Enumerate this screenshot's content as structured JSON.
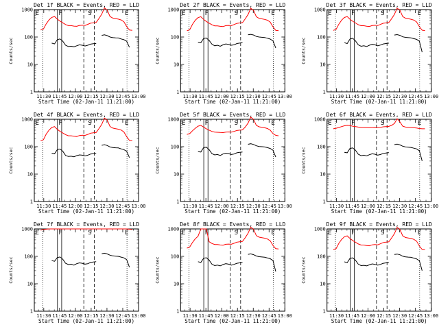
{
  "chart_data": [
    {
      "type": "line",
      "title": "Det 1f BLACK = Events, RED = LLD",
      "series": [
        {
          "name": "Events",
          "color": "#000000",
          "values": [
            null,
            null,
            null,
            null,
            60,
            56,
            80,
            85,
            70,
            50,
            45,
            46,
            44,
            48,
            52,
            50,
            47,
            50,
            55,
            57,
            58,
            null,
            115,
            120,
            112,
            100,
            95,
            93,
            92,
            85,
            80,
            70,
            42,
            null
          ]
        },
        {
          "name": "LLD",
          "color": "#ff0000",
          "values": [
            180,
            195,
            300,
            420,
            520,
            560,
            450,
            380,
            330,
            285,
            260,
            260,
            250,
            245,
            265,
            270,
            265,
            290,
            320,
            330,
            340,
            470,
            680,
            1150,
            950,
            560,
            490,
            470,
            450,
            420,
            360,
            240,
            180,
            175
          ]
        }
      ]
    },
    {
      "type": "line",
      "title": "Det 2f BLACK = Events, RED = LLD",
      "series": [
        {
          "name": "Events",
          "color": "#000000",
          "values": [
            null,
            null,
            null,
            null,
            65,
            62,
            88,
            92,
            75,
            55,
            48,
            50,
            46,
            52,
            56,
            54,
            50,
            52,
            58,
            60,
            62,
            null,
            120,
            125,
            118,
            105,
            100,
            98,
            96,
            90,
            84,
            72,
            40,
            null
          ]
        },
        {
          "name": "LLD",
          "color": "#ff0000",
          "values": [
            170,
            185,
            290,
            410,
            510,
            550,
            440,
            370,
            320,
            280,
            255,
            255,
            245,
            240,
            260,
            265,
            260,
            285,
            315,
            325,
            335,
            460,
            660,
            1120,
            930,
            550,
            480,
            460,
            440,
            410,
            350,
            235,
            175,
            170
          ]
        }
      ]
    },
    {
      "type": "line",
      "title": "Det 3f BLACK = Events, RED = LLD",
      "series": [
        {
          "name": "Events",
          "color": "#000000",
          "values": [
            null,
            null,
            null,
            null,
            62,
            58,
            84,
            90,
            72,
            52,
            46,
            48,
            45,
            50,
            54,
            52,
            48,
            51,
            56,
            58,
            60,
            null,
            118,
            122,
            115,
            102,
            97,
            95,
            93,
            87,
            82,
            70,
            28,
            null
          ]
        },
        {
          "name": "LLD",
          "color": "#ff0000",
          "values": [
            175,
            190,
            295,
            415,
            515,
            555,
            445,
            375,
            325,
            282,
            258,
            258,
            248,
            242,
            262,
            268,
            262,
            288,
            318,
            328,
            338,
            465,
            670,
            1130,
            940,
            555,
            485,
            465,
            445,
            415,
            355,
            238,
            178,
            172
          ]
        }
      ]
    },
    {
      "type": "line",
      "title": "Det 4f BLACK = Events, RED = LLD",
      "series": [
        {
          "name": "Events",
          "color": "#000000",
          "values": [
            null,
            null,
            null,
            null,
            58,
            55,
            78,
            82,
            68,
            48,
            44,
            45,
            43,
            47,
            50,
            49,
            46,
            49,
            54,
            56,
            57,
            null,
            112,
            118,
            110,
            98,
            93,
            91,
            90,
            83,
            78,
            68,
            40,
            null
          ]
        },
        {
          "name": "LLD",
          "color": "#ff0000",
          "values": [
            165,
            180,
            285,
            400,
            500,
            540,
            430,
            360,
            315,
            275,
            250,
            250,
            240,
            235,
            255,
            262,
            258,
            280,
            310,
            320,
            330,
            455,
            650,
            1100,
            920,
            545,
            475,
            455,
            435,
            405,
            345,
            230,
            170,
            165
          ]
        }
      ]
    },
    {
      "type": "line",
      "title": "Det 5f BLACK = Events, RED = LLD",
      "series": [
        {
          "name": "Events",
          "color": "#000000",
          "values": [
            null,
            null,
            null,
            null,
            66,
            64,
            92,
            96,
            78,
            56,
            50,
            52,
            48,
            54,
            58,
            56,
            52,
            54,
            60,
            62,
            64,
            null,
            122,
            128,
            120,
            108,
            102,
            100,
            98,
            92,
            86,
            74,
            42,
            null
          ]
        },
        {
          "name": "LLD",
          "color": "#ff0000",
          "values": [
            280,
            300,
            380,
            470,
            560,
            600,
            520,
            450,
            400,
            360,
            340,
            335,
            330,
            325,
            340,
            345,
            340,
            360,
            390,
            400,
            410,
            520,
            720,
            1200,
            980,
            600,
            530,
            510,
            490,
            460,
            400,
            300,
            260,
            250
          ]
        }
      ]
    },
    {
      "type": "line",
      "title": "Det 6f BLACK = Events, RED = LLD",
      "series": [
        {
          "name": "Events",
          "color": "#000000",
          "values": [
            null,
            null,
            null,
            null,
            62,
            60,
            86,
            90,
            74,
            53,
            47,
            49,
            46,
            51,
            55,
            53,
            49,
            52,
            57,
            59,
            61,
            null,
            119,
            124,
            116,
            104,
            98,
            96,
            94,
            88,
            83,
            71,
            30,
            null
          ]
        },
        {
          "name": "LLD",
          "color": "#ff0000",
          "values": [
            450,
            470,
            500,
            540,
            580,
            600,
            590,
            560,
            540,
            520,
            500,
            500,
            495,
            490,
            500,
            505,
            500,
            510,
            530,
            540,
            550,
            600,
            700,
            1050,
            800,
            560,
            520,
            510,
            500,
            490,
            480,
            460,
            450,
            450
          ]
        }
      ]
    },
    {
      "type": "line",
      "title": "Det 7f BLACK = Events, RED = LLD",
      "series": [
        {
          "name": "Events",
          "color": "#000000",
          "values": [
            null,
            null,
            null,
            null,
            70,
            66,
            90,
            95,
            78,
            56,
            50,
            52,
            48,
            54,
            58,
            56,
            52,
            54,
            60,
            62,
            64,
            null,
            124,
            130,
            122,
            110,
            104,
            102,
            100,
            94,
            88,
            76,
            40,
            null
          ]
        },
        {
          "name": "LLD",
          "color": "#ff0000",
          "values": [
            900,
            950,
            980,
            1000,
            1000,
            1000,
            1000,
            1000,
            1000,
            1000,
            1000,
            1000,
            1000,
            1000,
            1000,
            1000,
            1000,
            1000,
            1000,
            1000,
            1000,
            1000,
            1000,
            1000,
            1000,
            1000,
            1000,
            1000,
            1000,
            1000,
            1000,
            1000,
            980,
            950
          ]
        }
      ]
    },
    {
      "type": "line",
      "title": "Det 8f BLACK = Events, RED = LLD",
      "series": [
        {
          "name": "Events",
          "color": "#000000",
          "values": [
            null,
            null,
            null,
            null,
            64,
            60,
            85,
            89,
            73,
            52,
            46,
            48,
            45,
            50,
            54,
            52,
            48,
            51,
            56,
            58,
            60,
            null,
            118,
            123,
            115,
            103,
            97,
            95,
            93,
            87,
            82,
            70,
            28,
            null
          ]
        },
        {
          "name": "LLD",
          "color": "#ff0000",
          "values": [
            200,
            220,
            320,
            440,
            540,
            1000,
            1000,
            1000,
            340,
            295,
            270,
            270,
            260,
            255,
            275,
            280,
            275,
            300,
            330,
            340,
            350,
            480,
            690,
            1160,
            960,
            570,
            500,
            480,
            460,
            430,
            370,
            250,
            190,
            185
          ]
        }
      ]
    },
    {
      "type": "line",
      "title": "Det 9f BLACK = Events, RED = LLD",
      "series": [
        {
          "name": "Events",
          "color": "#000000",
          "values": [
            null,
            null,
            null,
            null,
            63,
            59,
            84,
            88,
            72,
            52,
            46,
            47,
            45,
            49,
            53,
            51,
            48,
            51,
            56,
            58,
            59,
            null,
            117,
            121,
            114,
            101,
            96,
            94,
            92,
            86,
            81,
            69,
            30,
            null
          ]
        },
        {
          "name": "LLD",
          "color": "#ff0000",
          "values": [
            178,
            192,
            298,
            418,
            518,
            558,
            448,
            378,
            328,
            283,
            259,
            259,
            249,
            243,
            263,
            269,
            263,
            289,
            319,
            329,
            339,
            468,
            672,
            1140,
            945,
            558,
            488,
            468,
            448,
            418,
            358,
            239,
            179,
            174
          ]
        }
      ]
    }
  ],
  "shared": {
    "x_range": [
      "11:21",
      "13:00"
    ],
    "x_ticks": [
      "11:30",
      "11:45",
      "12:00",
      "12:15",
      "12:30",
      "12:45",
      "13:00"
    ],
    "y_scale": "log",
    "y_range": [
      1,
      1000
    ],
    "y_ticks": [
      "1",
      "10",
      "100",
      "1000"
    ],
    "ylabel": "Counts/sec",
    "xlabel": "Start Time (02-Jan-11 11:21:00)",
    "flags": [
      "E",
      "F",
      "S",
      "E"
    ],
    "colors": {
      "events": "#000000",
      "lld": "#ff0000"
    }
  }
}
